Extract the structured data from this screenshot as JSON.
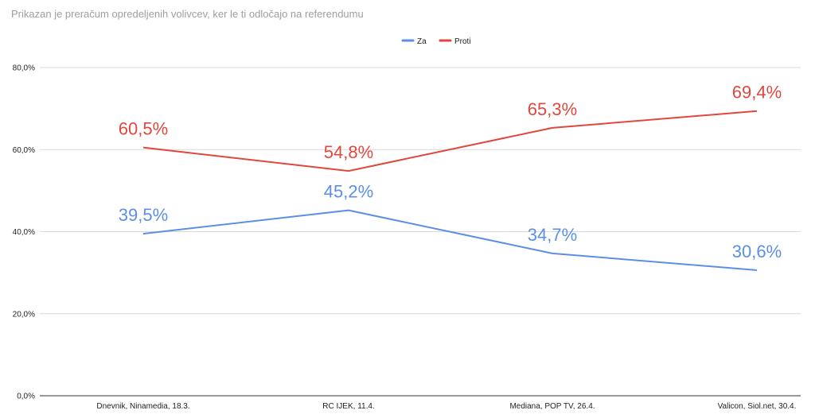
{
  "chart_data": {
    "type": "line",
    "title": "Prikazan je preračum opredeljenih volivcev, ker le ti odločajo na referendumu",
    "categories": [
      "Dnevnik, Ninamedia, 18.3.",
      "RC IJEK, 11.4.",
      "Mediana, POP TV, 26.4.",
      "Valicon, Siol.net, 30.4."
    ],
    "series": [
      {
        "name": "Za",
        "color": "#5b8fe6",
        "values": [
          39.5,
          45.2,
          34.7,
          30.6
        ],
        "labels": [
          "39,5%",
          "45,2%",
          "34,7%",
          "30,6%"
        ]
      },
      {
        "name": "Proti",
        "color": "#e0483e",
        "values": [
          60.5,
          54.8,
          65.3,
          69.4
        ],
        "labels": [
          "60,5%",
          "54,8%",
          "65,3%",
          "69,4%"
        ]
      }
    ],
    "ylim": [
      0,
      80
    ],
    "yticks": [
      0,
      20,
      40,
      60,
      80
    ],
    "ytick_labels": [
      "0,0%",
      "20,0%",
      "40,0%",
      "60,0%",
      "80,0%"
    ],
    "grid": true,
    "legend_position": "top-center"
  }
}
